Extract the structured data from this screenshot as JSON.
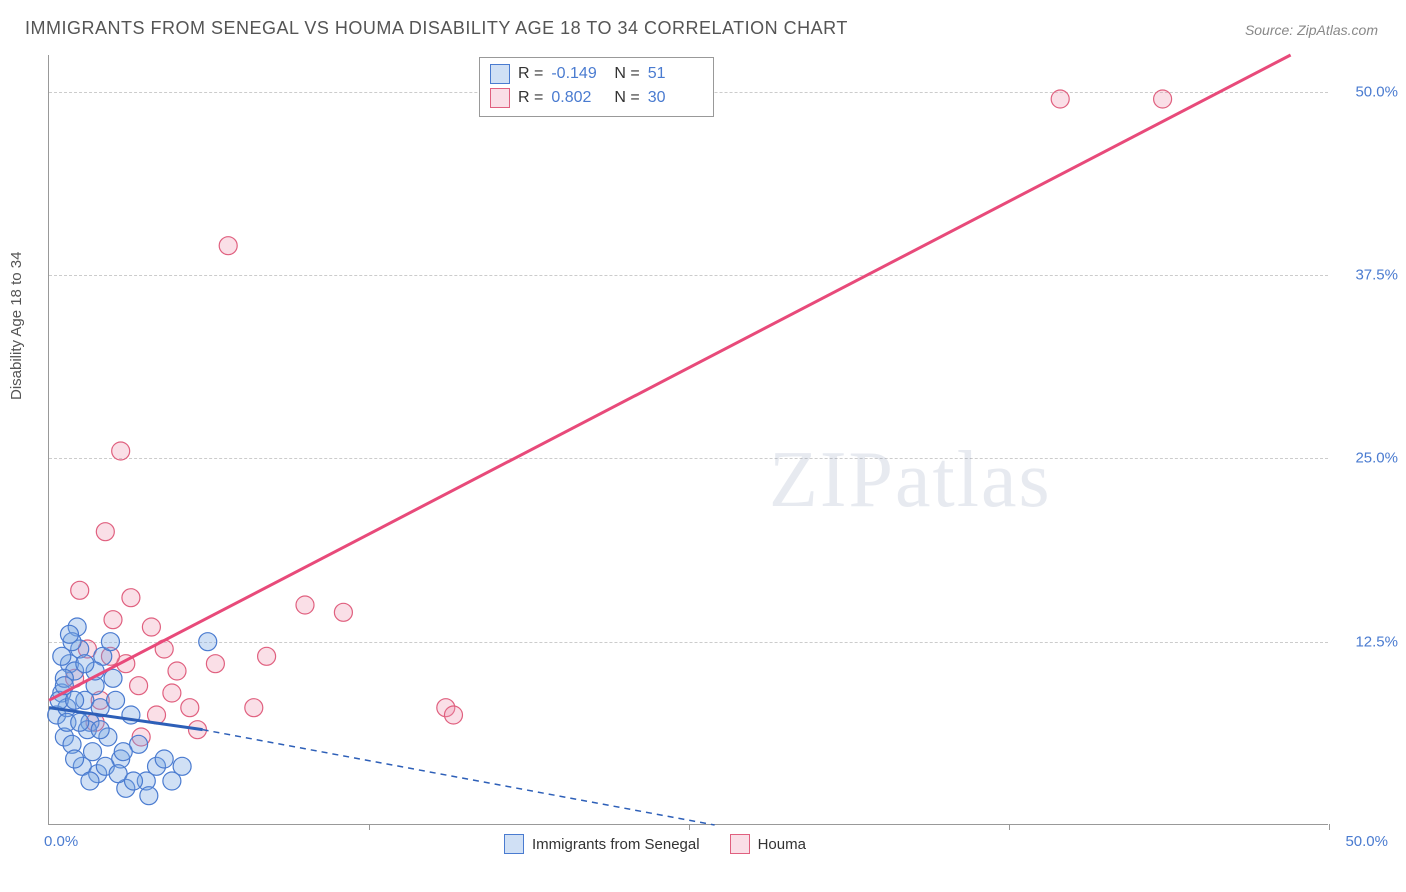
{
  "title": "IMMIGRANTS FROM SENEGAL VS HOUMA DISABILITY AGE 18 TO 34 CORRELATION CHART",
  "source": "Source: ZipAtlas.com",
  "ylabel": "Disability Age 18 to 34",
  "watermark_zip": "ZIP",
  "watermark_atlas": "atlas",
  "axis": {
    "xmin": 0.0,
    "xmax": 50.0,
    "ymin": 0.0,
    "ymax": 52.5,
    "ytick_labels": [
      "12.5%",
      "25.0%",
      "37.5%",
      "50.0%"
    ],
    "ytick_values": [
      12.5,
      25.0,
      37.5,
      50.0
    ],
    "xorigin_label": "0.0%",
    "xmax_label": "50.0%",
    "xtick_marks": [
      12.5,
      25.0,
      37.5,
      50.0
    ],
    "grid_color": "#cccccc",
    "axis_color": "#999999",
    "tick_color": "#4a7bd0"
  },
  "series": {
    "senegal": {
      "label": "Immigrants from Senegal",
      "fill": "rgba(120,165,225,0.35)",
      "stroke": "#4a7bd0",
      "line_color": "#2d5fb8",
      "R_label": "R =",
      "R": "-0.149",
      "N_label": "N =",
      "N": "51",
      "regression": {
        "x1": 0.0,
        "y1": 8.0,
        "x2_solid": 6.0,
        "y2_solid": 6.5,
        "x2_dash": 26.0,
        "y2_dash": 0.0
      },
      "points": [
        {
          "x": 0.3,
          "y": 7.5
        },
        {
          "x": 0.5,
          "y": 9.0
        },
        {
          "x": 0.7,
          "y": 8.0
        },
        {
          "x": 0.8,
          "y": 11.0
        },
        {
          "x": 1.0,
          "y": 10.5
        },
        {
          "x": 1.2,
          "y": 12.0
        },
        {
          "x": 0.6,
          "y": 6.0
        },
        {
          "x": 0.9,
          "y": 5.5
        },
        {
          "x": 1.4,
          "y": 8.5
        },
        {
          "x": 1.6,
          "y": 7.0
        },
        {
          "x": 1.8,
          "y": 9.5
        },
        {
          "x": 2.0,
          "y": 8.0
        },
        {
          "x": 1.1,
          "y": 13.5
        },
        {
          "x": 1.3,
          "y": 4.0
        },
        {
          "x": 0.4,
          "y": 8.5
        },
        {
          "x": 2.3,
          "y": 6.0
        },
        {
          "x": 2.5,
          "y": 10.0
        },
        {
          "x": 1.7,
          "y": 5.0
        },
        {
          "x": 2.8,
          "y": 4.5
        },
        {
          "x": 0.9,
          "y": 12.5
        },
        {
          "x": 3.2,
          "y": 7.5
        },
        {
          "x": 1.9,
          "y": 3.5
        },
        {
          "x": 2.1,
          "y": 11.5
        },
        {
          "x": 0.6,
          "y": 10.0
        },
        {
          "x": 3.5,
          "y": 5.5
        },
        {
          "x": 1.0,
          "y": 4.5
        },
        {
          "x": 2.6,
          "y": 8.5
        },
        {
          "x": 0.7,
          "y": 7.0
        },
        {
          "x": 3.8,
          "y": 3.0
        },
        {
          "x": 1.5,
          "y": 6.5
        },
        {
          "x": 2.2,
          "y": 4.0
        },
        {
          "x": 4.2,
          "y": 4.0
        },
        {
          "x": 2.4,
          "y": 12.5
        },
        {
          "x": 3.0,
          "y": 2.5
        },
        {
          "x": 4.5,
          "y": 4.5
        },
        {
          "x": 0.5,
          "y": 11.5
        },
        {
          "x": 1.8,
          "y": 10.5
        },
        {
          "x": 3.9,
          "y": 2.0
        },
        {
          "x": 2.7,
          "y": 3.5
        },
        {
          "x": 5.2,
          "y": 4.0
        },
        {
          "x": 4.8,
          "y": 3.0
        },
        {
          "x": 1.4,
          "y": 11.0
        },
        {
          "x": 3.3,
          "y": 3.0
        },
        {
          "x": 2.9,
          "y": 5.0
        },
        {
          "x": 0.8,
          "y": 13.0
        },
        {
          "x": 6.2,
          "y": 12.5
        },
        {
          "x": 1.6,
          "y": 3.0
        },
        {
          "x": 2.0,
          "y": 6.5
        },
        {
          "x": 1.2,
          "y": 7.0
        },
        {
          "x": 0.6,
          "y": 9.5
        },
        {
          "x": 1.0,
          "y": 8.5
        }
      ]
    },
    "houma": {
      "label": "Houma",
      "fill": "rgba(240,150,175,0.30)",
      "stroke": "#e0607f",
      "line_color": "#e84a7a",
      "R_label": "R =",
      "R": "0.802",
      "N_label": "N =",
      "N": "30",
      "regression": {
        "x1": 0.0,
        "y1": 8.5,
        "x2": 48.5,
        "y2": 52.5
      },
      "points": [
        {
          "x": 1.0,
          "y": 10.0
        },
        {
          "x": 1.5,
          "y": 12.0
        },
        {
          "x": 2.0,
          "y": 8.5
        },
        {
          "x": 2.5,
          "y": 14.0
        },
        {
          "x": 3.0,
          "y": 11.0
        },
        {
          "x": 3.5,
          "y": 9.5
        },
        {
          "x": 4.0,
          "y": 13.5
        },
        {
          "x": 1.2,
          "y": 16.0
        },
        {
          "x": 4.5,
          "y": 12.0
        },
        {
          "x": 5.0,
          "y": 10.5
        },
        {
          "x": 5.5,
          "y": 8.0
        },
        {
          "x": 2.2,
          "y": 20.0
        },
        {
          "x": 2.8,
          "y": 25.5
        },
        {
          "x": 3.2,
          "y": 15.5
        },
        {
          "x": 4.2,
          "y": 7.5
        },
        {
          "x": 5.8,
          "y": 6.5
        },
        {
          "x": 6.5,
          "y": 11.0
        },
        {
          "x": 7.0,
          "y": 39.5
        },
        {
          "x": 8.0,
          "y": 8.0
        },
        {
          "x": 8.5,
          "y": 11.5
        },
        {
          "x": 10.0,
          "y": 15.0
        },
        {
          "x": 11.5,
          "y": 14.5
        },
        {
          "x": 15.5,
          "y": 8.0
        },
        {
          "x": 15.8,
          "y": 7.5
        },
        {
          "x": 39.5,
          "y": 49.5
        },
        {
          "x": 43.5,
          "y": 49.5
        },
        {
          "x": 1.8,
          "y": 7.0
        },
        {
          "x": 3.6,
          "y": 6.0
        },
        {
          "x": 4.8,
          "y": 9.0
        },
        {
          "x": 2.4,
          "y": 11.5
        }
      ]
    }
  },
  "legend_bottom": {
    "item1_label": "Immigrants from Senegal",
    "item2_label": "Houma"
  },
  "styling": {
    "point_radius": 9,
    "line_width_solid": 3,
    "line_width_dash": 1.5,
    "dash_pattern": "6,5",
    "background": "#ffffff",
    "title_color": "#555555",
    "title_fontsize": 18,
    "label_fontsize": 15
  }
}
